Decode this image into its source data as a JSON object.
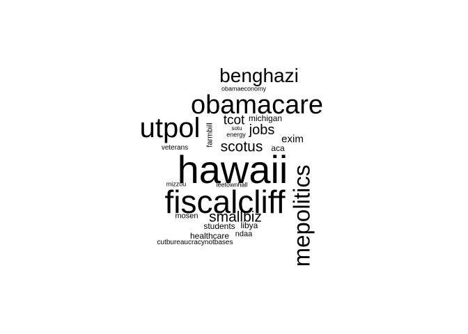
{
  "word_cloud": {
    "text_color": "#000000",
    "background": "#ffffff",
    "words": [
      {
        "key": "hawaii",
        "text": "hawaii",
        "weight": 100,
        "rotated": false
      },
      {
        "key": "fiscalcliff",
        "text": "fiscalcliff",
        "weight": 88,
        "rotated": false
      },
      {
        "key": "mepolitics",
        "text": "mepolitics",
        "weight": 75,
        "rotated": true
      },
      {
        "key": "obamacare",
        "text": "obamacare",
        "weight": 72,
        "rotated": false
      },
      {
        "key": "utpol",
        "text": "utpol",
        "weight": 70,
        "rotated": false
      },
      {
        "key": "benghazi",
        "text": "benghazi",
        "weight": 52,
        "rotated": false
      },
      {
        "key": "scotus",
        "text": "scotus",
        "weight": 40,
        "rotated": false
      },
      {
        "key": "smallbiz",
        "text": "smallbiz",
        "weight": 40,
        "rotated": false
      },
      {
        "key": "jobs",
        "text": "jobs",
        "weight": 38,
        "rotated": false
      },
      {
        "key": "tcot",
        "text": "tcot",
        "weight": 35,
        "rotated": false
      },
      {
        "key": "exim",
        "text": "exim",
        "weight": 28,
        "rotated": false
      },
      {
        "key": "students",
        "text": "students",
        "weight": 22,
        "rotated": false
      },
      {
        "key": "healthcare",
        "text": "healthcare",
        "weight": 22,
        "rotated": false
      },
      {
        "key": "libya",
        "text": "libya",
        "weight": 22,
        "rotated": false
      },
      {
        "key": "michigan",
        "text": "michigan",
        "weight": 21,
        "rotated": false
      },
      {
        "key": "aca",
        "text": "aca",
        "weight": 21,
        "rotated": false
      },
      {
        "key": "farmbill",
        "text": "farmbill",
        "weight": 21,
        "rotated": true
      },
      {
        "key": "mosen",
        "text": "mosen",
        "weight": 19,
        "rotated": false
      },
      {
        "key": "ndaa",
        "text": "ndaa",
        "weight": 19,
        "rotated": false
      },
      {
        "key": "veterans",
        "text": "veterans",
        "weight": 18,
        "rotated": false
      },
      {
        "key": "cutbureaucracynotbases",
        "text": "cutbureaucracynotbases",
        "weight": 18,
        "rotated": false
      },
      {
        "key": "mizzou",
        "text": "mizzou",
        "weight": 17,
        "rotated": false
      },
      {
        "key": "leetownhall",
        "text": "leetownhall",
        "weight": 17,
        "rotated": false
      },
      {
        "key": "energy",
        "text": "energy",
        "weight": 17,
        "rotated": false
      },
      {
        "key": "obamaeconomy",
        "text": "obamaeconomy",
        "weight": 17,
        "rotated": false
      },
      {
        "key": "sotu",
        "text": "sotu",
        "weight": 15,
        "rotated": false
      }
    ]
  }
}
